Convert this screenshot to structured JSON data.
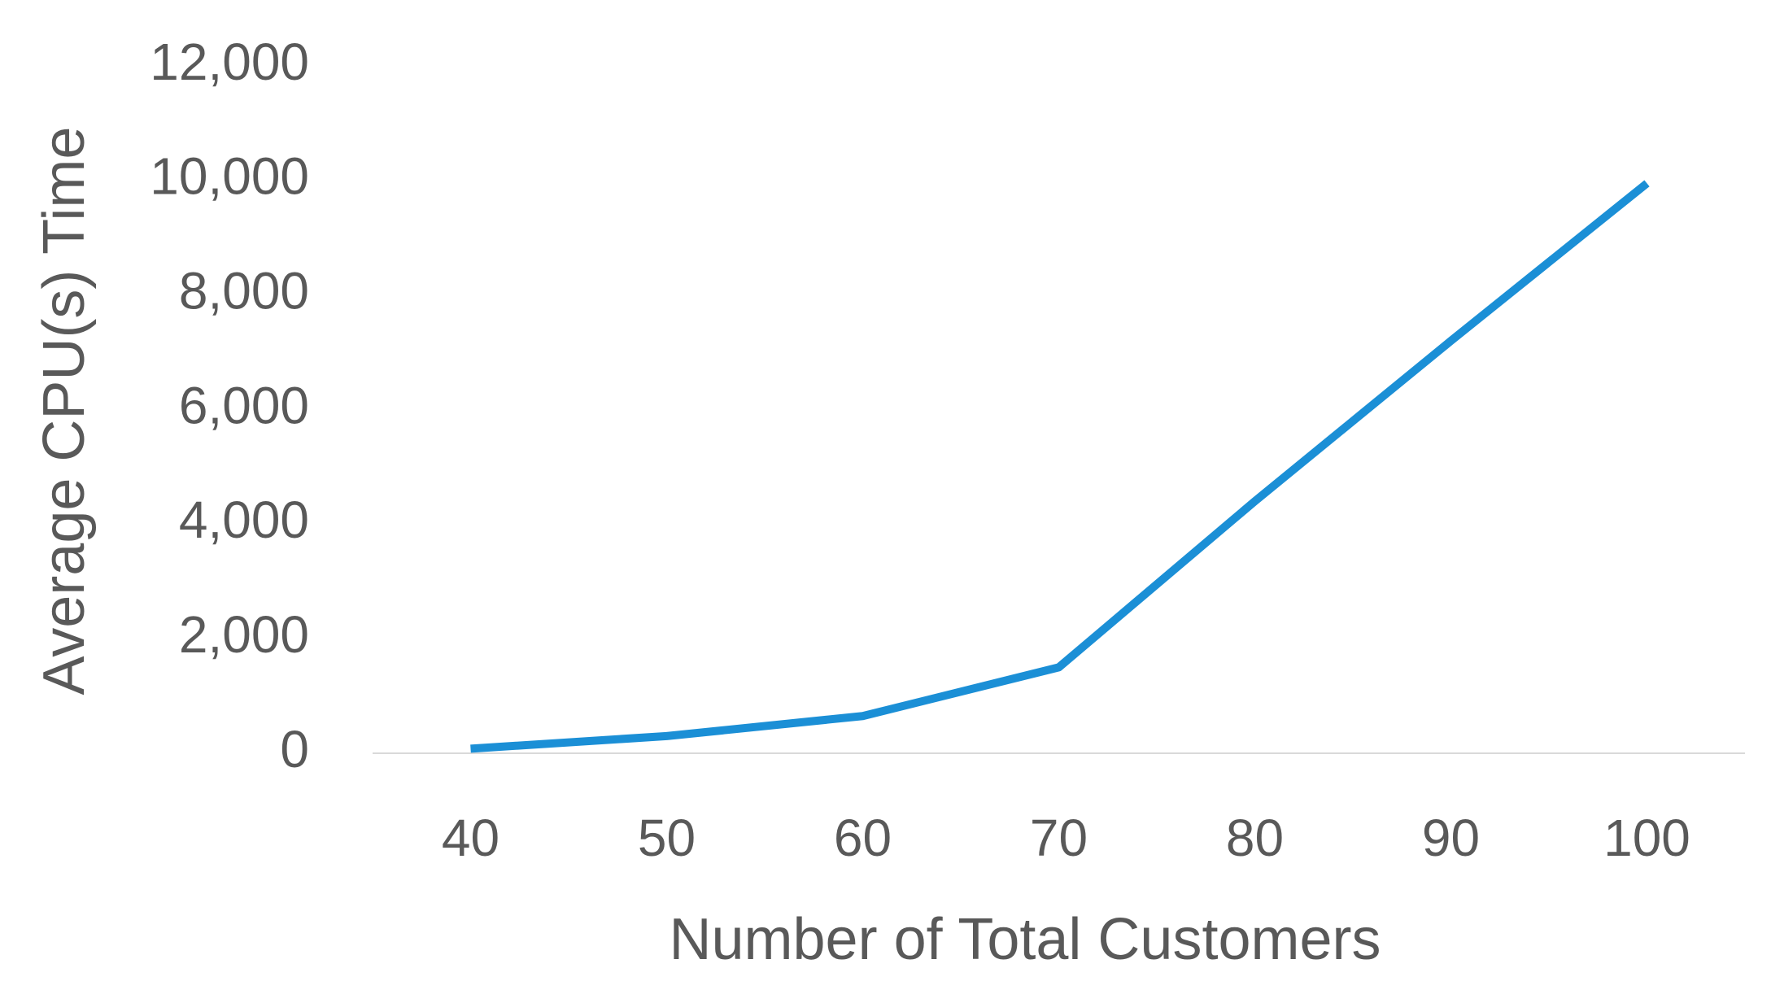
{
  "chart_data": {
    "type": "line",
    "x_label": "Number of Total Customers",
    "y_label": "Average CPU(s) Time",
    "categories": [
      "40",
      "50",
      "60",
      "70",
      "80",
      "90",
      "100"
    ],
    "series": [
      {
        "name": "Average CPU(s) Time",
        "color": "#1b8fd6",
        "values": [
          80,
          300,
          650,
          1500,
          4400,
          7200,
          9950
        ]
      }
    ],
    "ylim": [
      0,
      12000
    ],
    "yticks": [
      0,
      {
        "value": 2000,
        "label": "2,000"
      },
      {
        "value": 4000,
        "label": "4,000"
      },
      {
        "value": 6000,
        "label": "6,000"
      },
      {
        "value": 8000,
        "label": "8,000"
      },
      {
        "value": 10000,
        "label": "10,000"
      },
      {
        "value": 12000,
        "label": "12,000"
      }
    ],
    "grid": false
  }
}
